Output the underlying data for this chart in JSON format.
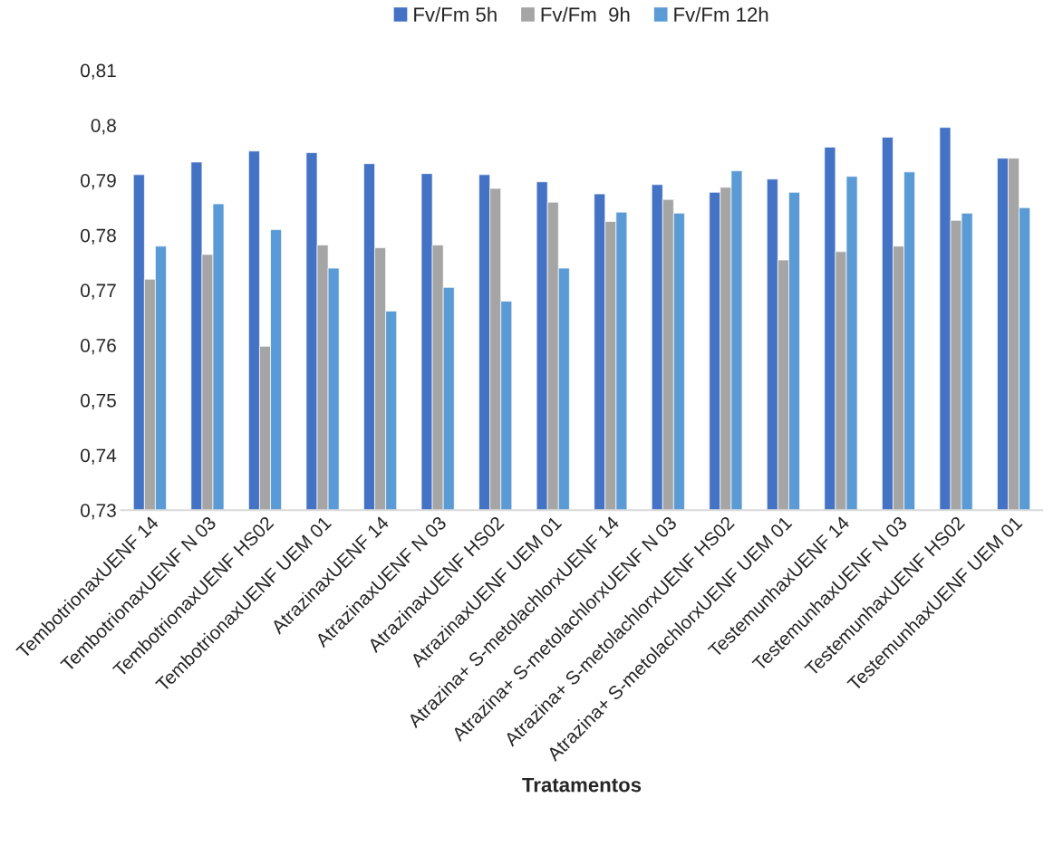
{
  "chart_data": {
    "type": "bar",
    "xlabel": "Tratamentos",
    "categories": [
      "TembotrionaxUENF 14",
      "TembotrionaxUENF N 03",
      "TembotrionaxUENF HS02",
      "TembotrionaxUENF UEM 01",
      "AtrazinaxUENF 14",
      "AtrazinaxUENF N 03",
      "AtrazinaxUENF HS02",
      "AtrazinaxUENF UEM 01",
      "Atrazina+ S-metolachlorxUENF 14",
      "Atrazina+ S-metolachlorxUENF N 03",
      "Atrazina+ S-metolachlorxUENF HS02",
      "Atrazina+ S-metolachlorxUENF UEM 01",
      "TestemunhaxUENF 14",
      "TestemunhaxUENF N 03",
      "TestemunhaxUENF HS02",
      "TestemunhaxUENF UEM 01"
    ],
    "series": [
      {
        "name": "Fv/Fm 5h",
        "color": "#4472c4",
        "values": [
          0.791,
          0.7933,
          0.7953,
          0.795,
          0.793,
          0.7912,
          0.791,
          0.7897,
          0.7875,
          0.7892,
          0.7878,
          0.7902,
          0.796,
          0.7978,
          0.7996,
          0.794
        ]
      },
      {
        "name": "Fv/Fm  9h",
        "color": "#a5a5a5",
        "values": [
          0.772,
          0.7765,
          0.7598,
          0.7782,
          0.7777,
          0.7782,
          0.7885,
          0.786,
          0.7825,
          0.7865,
          0.7887,
          0.7755,
          0.777,
          0.778,
          0.7827,
          0.794
        ]
      },
      {
        "name": "Fv/Fm 12h",
        "color": "#5b9bd5",
        "values": [
          0.778,
          0.7857,
          0.781,
          0.774,
          0.7662,
          0.7705,
          0.768,
          0.774,
          0.7842,
          0.784,
          0.7917,
          0.7878,
          0.7907,
          0.7915,
          0.784,
          0.785
        ]
      }
    ],
    "ylim": [
      0.73,
      0.81
    ],
    "yticks": [
      {
        "value": 0.73,
        "label": "0,73"
      },
      {
        "value": 0.74,
        "label": "0,74"
      },
      {
        "value": 0.75,
        "label": "0,75"
      },
      {
        "value": 0.76,
        "label": "0,76"
      },
      {
        "value": 0.77,
        "label": "0,77"
      },
      {
        "value": 0.78,
        "label": "0,78"
      },
      {
        "value": 0.79,
        "label": "0,79"
      },
      {
        "value": 0.8,
        "label": "0,8"
      },
      {
        "value": 0.81,
        "label": "0,81"
      }
    ],
    "grid": false,
    "legend": "top"
  }
}
